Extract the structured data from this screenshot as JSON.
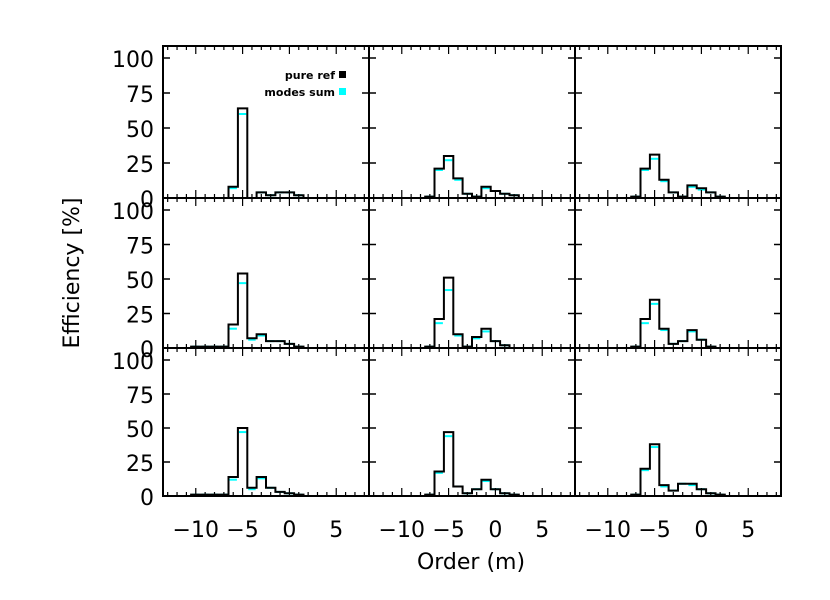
{
  "chart_data": {
    "type": "bar",
    "layout": {
      "rows": 3,
      "cols": 3
    },
    "xlabel": "Order (m)",
    "ylabel": "Efficiency [%]",
    "xlim": [
      -13.5,
      8.5
    ],
    "ylim": [
      0,
      100
    ],
    "xticks": [
      -10,
      -5,
      0,
      5
    ],
    "xtick_labels": [
      "−10",
      "−5",
      "0",
      "5"
    ],
    "yticks": [
      0,
      25,
      50,
      75,
      100
    ],
    "ytick_labels": [
      "0",
      "25",
      "50",
      "75",
      "100"
    ],
    "orders": [
      -13,
      -12,
      -11,
      -10,
      -9,
      -8,
      -7,
      -6,
      -5,
      -4,
      -3,
      -2,
      -1,
      0,
      1,
      2,
      3,
      4,
      5,
      6,
      7,
      8
    ],
    "legend": {
      "position": "top-right of first panel",
      "entries": [
        {
          "label": "pure ref",
          "color": "#000000"
        },
        {
          "label": "modes sum",
          "color": "#00ffff"
        }
      ]
    },
    "panels": [
      {
        "name": "row1-col1",
        "pure_ref": [
          0,
          0,
          0,
          0,
          0,
          0,
          0,
          8,
          64,
          0,
          4,
          2,
          4,
          4,
          2,
          0,
          0,
          0,
          0,
          0,
          0,
          0
        ],
        "modes_sum": [
          0,
          0,
          0,
          0,
          0,
          0,
          0,
          7,
          60,
          0,
          4,
          2,
          4,
          4,
          2,
          0,
          0,
          0,
          0,
          0,
          0,
          0
        ]
      },
      {
        "name": "row1-col2",
        "pure_ref": [
          0,
          0,
          0,
          0,
          0,
          0,
          1,
          21,
          30,
          14,
          3,
          1,
          8,
          5,
          3,
          2,
          0,
          0,
          0,
          0,
          0,
          0
        ],
        "modes_sum": [
          0,
          0,
          0,
          0,
          0,
          0,
          1,
          20,
          27,
          13,
          3,
          1,
          7,
          5,
          3,
          2,
          0,
          0,
          0,
          0,
          0,
          0
        ]
      },
      {
        "name": "row1-col3",
        "pure_ref": [
          0,
          0,
          0,
          0,
          0,
          0,
          1,
          21,
          31,
          13,
          4,
          1,
          9,
          7,
          4,
          1,
          0,
          0,
          0,
          0,
          0,
          0
        ],
        "modes_sum": [
          0,
          0,
          0,
          0,
          0,
          0,
          1,
          20,
          28,
          12,
          4,
          1,
          8,
          6,
          4,
          1,
          0,
          0,
          0,
          0,
          0,
          0
        ]
      },
      {
        "name": "row2-col1",
        "pure_ref": [
          0,
          0,
          0,
          1,
          1,
          1,
          1,
          17,
          54,
          7,
          10,
          5,
          5,
          3,
          1,
          0,
          0,
          0,
          0,
          0,
          0,
          0
        ],
        "modes_sum": [
          0,
          0,
          0,
          1,
          1,
          1,
          1,
          14,
          47,
          6,
          9,
          5,
          5,
          3,
          1,
          0,
          0,
          0,
          0,
          0,
          0,
          0
        ]
      },
      {
        "name": "row2-col2",
        "pure_ref": [
          0,
          0,
          0,
          0,
          0,
          0,
          1,
          21,
          51,
          10,
          1,
          8,
          14,
          5,
          2,
          0,
          0,
          0,
          0,
          0,
          0,
          0
        ],
        "modes_sum": [
          0,
          0,
          0,
          0,
          0,
          0,
          1,
          18,
          42,
          9,
          1,
          7,
          12,
          5,
          2,
          0,
          0,
          0,
          0,
          0,
          0,
          0
        ]
      },
      {
        "name": "row2-col3",
        "pure_ref": [
          0,
          0,
          0,
          0,
          0,
          0,
          1,
          21,
          35,
          14,
          3,
          5,
          13,
          6,
          1,
          0,
          0,
          0,
          0,
          0,
          0,
          0
        ],
        "modes_sum": [
          0,
          0,
          0,
          0,
          0,
          0,
          1,
          18,
          32,
          13,
          3,
          5,
          12,
          6,
          1,
          0,
          0,
          0,
          0,
          0,
          0,
          0
        ]
      },
      {
        "name": "row3-col1",
        "pure_ref": [
          0,
          0,
          0,
          1,
          1,
          1,
          1,
          14,
          50,
          6,
          14,
          6,
          3,
          2,
          1,
          0,
          0,
          0,
          0,
          0,
          0,
          0
        ],
        "modes_sum": [
          0,
          0,
          0,
          1,
          1,
          1,
          1,
          12,
          47,
          5,
          13,
          6,
          3,
          2,
          1,
          0,
          0,
          0,
          0,
          0,
          0,
          0
        ]
      },
      {
        "name": "row3-col2",
        "pure_ref": [
          0,
          0,
          0,
          0,
          0,
          0,
          1,
          18,
          47,
          7,
          2,
          5,
          12,
          5,
          2,
          1,
          0,
          0,
          0,
          0,
          0,
          0
        ],
        "modes_sum": [
          0,
          0,
          0,
          0,
          0,
          0,
          1,
          17,
          44,
          7,
          2,
          5,
          11,
          5,
          2,
          1,
          0,
          0,
          0,
          0,
          0,
          0
        ]
      },
      {
        "name": "row3-col3",
        "pure_ref": [
          0,
          0,
          0,
          0,
          0,
          0,
          1,
          20,
          38,
          8,
          4,
          9,
          9,
          5,
          2,
          1,
          0,
          0,
          0,
          0,
          0,
          0
        ],
        "modes_sum": [
          0,
          0,
          0,
          0,
          0,
          0,
          1,
          19,
          36,
          7,
          4,
          9,
          8,
          5,
          2,
          1,
          0,
          0,
          0,
          0,
          0,
          0
        ]
      }
    ]
  }
}
